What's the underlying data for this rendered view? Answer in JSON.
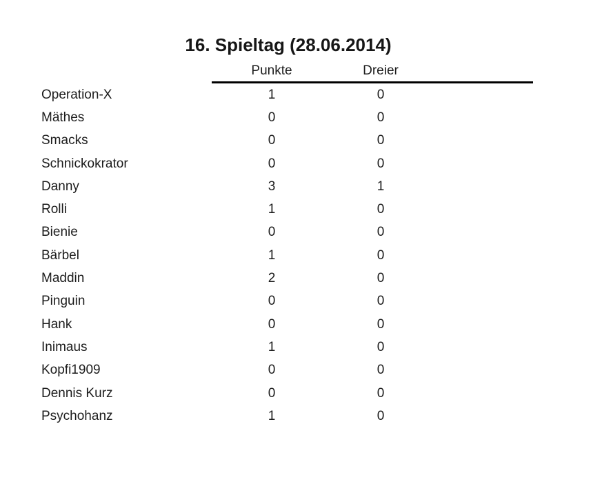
{
  "title": "16. Spieltag (28.06.2014)",
  "table": {
    "columns": [
      "Punkte",
      "Dreier"
    ],
    "rows": [
      {
        "name": "Operation-X",
        "punkte": "1",
        "dreier": "0"
      },
      {
        "name": "Mäthes",
        "punkte": "0",
        "dreier": "0"
      },
      {
        "name": "Smacks",
        "punkte": "0",
        "dreier": "0"
      },
      {
        "name": "Schnickokrator",
        "punkte": "0",
        "dreier": "0"
      },
      {
        "name": "Danny",
        "punkte": "3",
        "dreier": "1"
      },
      {
        "name": "Rolli",
        "punkte": "1",
        "dreier": "0"
      },
      {
        "name": "Bienie",
        "punkte": "0",
        "dreier": "0"
      },
      {
        "name": "Bärbel",
        "punkte": "1",
        "dreier": "0"
      },
      {
        "name": "Maddin",
        "punkte": "2",
        "dreier": "0"
      },
      {
        "name": "Pinguin",
        "punkte": "0",
        "dreier": "0"
      },
      {
        "name": "Hank",
        "punkte": "0",
        "dreier": "0"
      },
      {
        "name": "Inimaus",
        "punkte": "1",
        "dreier": "0"
      },
      {
        "name": "Kopfi1909",
        "punkte": "0",
        "dreier": "0"
      },
      {
        "name": "Dennis Kurz",
        "punkte": "0",
        "dreier": "0"
      },
      {
        "name": "Psychohanz",
        "punkte": "1",
        "dreier": "0"
      }
    ]
  },
  "colors": {
    "text": "#1c1c1c",
    "rule": "#000000",
    "background": "#ffffff"
  }
}
